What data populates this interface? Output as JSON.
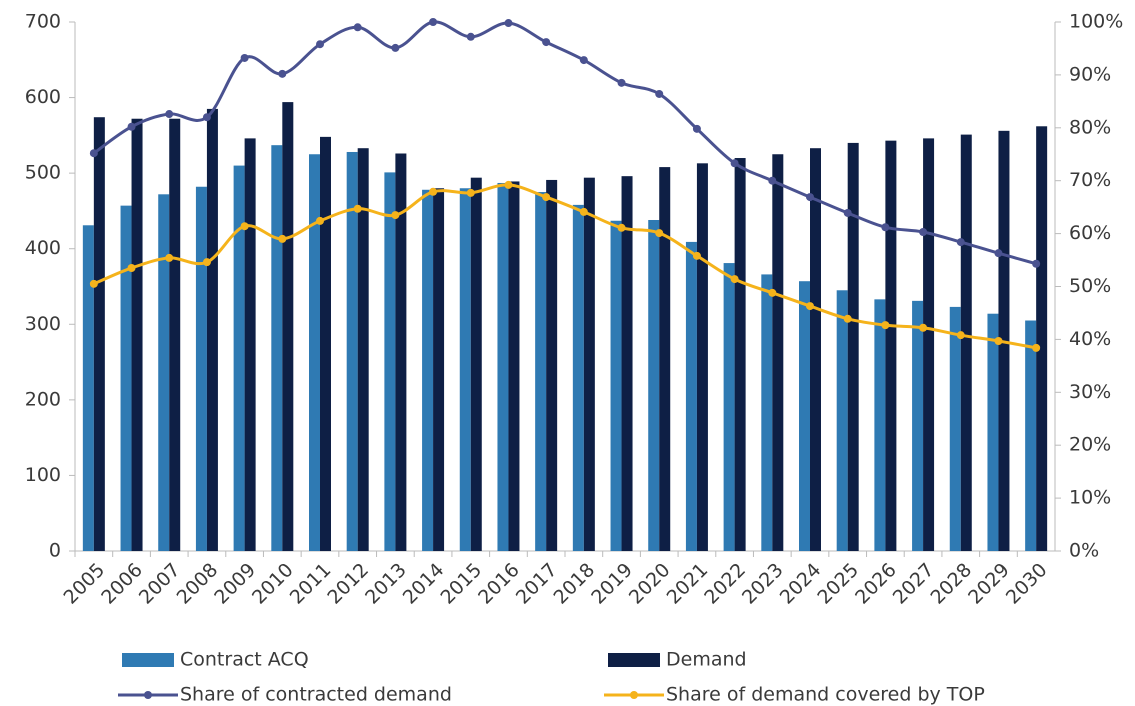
{
  "chart_data": {
    "type": "bar",
    "categories": [
      "2005",
      "2006",
      "2007",
      "2008",
      "2009",
      "2010",
      "2011",
      "2012",
      "2013",
      "2014",
      "2015",
      "2016",
      "2017",
      "2018",
      "2019",
      "2020",
      "2021",
      "2022",
      "2023",
      "2024",
      "2025",
      "2026",
      "2027",
      "2028",
      "2029",
      "2030"
    ],
    "series": [
      {
        "name": "Contract ACQ",
        "type": "bar",
        "color": "#2f7ab3",
        "values": [
          431,
          457,
          472,
          482,
          510,
          537,
          525,
          528,
          501,
          478,
          480,
          487,
          475,
          458,
          437,
          438,
          409,
          381,
          366,
          357,
          345,
          333,
          331,
          323,
          314,
          305
        ]
      },
      {
        "name": "Demand",
        "type": "bar",
        "color": "#0e1f45",
        "values": [
          574,
          572,
          572,
          585,
          546,
          594,
          548,
          533,
          526,
          480,
          494,
          489,
          491,
          494,
          496,
          508,
          513,
          520,
          525,
          533,
          540,
          543,
          546,
          551,
          556,
          562
        ]
      },
      {
        "name": "Share of contracted demand",
        "type": "line",
        "axis": "y2",
        "color": "#4a5290",
        "values": [
          75.2,
          80.2,
          82.6,
          82,
          93.2,
          90.2,
          95.8,
          99,
          95.1,
          100,
          97.2,
          99.8,
          96.2,
          92.8,
          88.5,
          86.4,
          79.8,
          73.3,
          70,
          66.9,
          63.9,
          61.2,
          60.3,
          58.4,
          56.3,
          54.3
        ]
      },
      {
        "name": "Share of demand covered by TOP",
        "type": "line",
        "axis": "y2",
        "color": "#f5b31b",
        "values": [
          50.5,
          53.5,
          55.4,
          54.6,
          61.4,
          59,
          62.4,
          64.7,
          63.5,
          67.9,
          67.7,
          69.2,
          66.9,
          64.1,
          61.1,
          60.1,
          55.8,
          51.4,
          48.8,
          46.3,
          43.9,
          42.7,
          42.2,
          40.8,
          39.7,
          38.4
        ]
      }
    ],
    "ylim": [
      0,
      700
    ],
    "yticks": [
      0,
      100,
      200,
      300,
      400,
      500,
      600,
      700
    ],
    "y2lim": [
      0,
      100
    ],
    "y2ticks": [
      {
        "value": 0,
        "label": "0%"
      },
      {
        "value": 10,
        "label": "10%"
      },
      {
        "value": 20,
        "label": "20%"
      },
      {
        "value": 30,
        "label": "30%"
      },
      {
        "value": 40,
        "label": "40%"
      },
      {
        "value": 50,
        "label": "50%"
      },
      {
        "value": 60,
        "label": "60%"
      },
      {
        "value": 70,
        "label": "70%"
      },
      {
        "value": 80,
        "label": "80%"
      },
      {
        "value": 90,
        "label": "90%"
      },
      {
        "value": 100,
        "label": "100%"
      }
    ],
    "grid": false
  }
}
